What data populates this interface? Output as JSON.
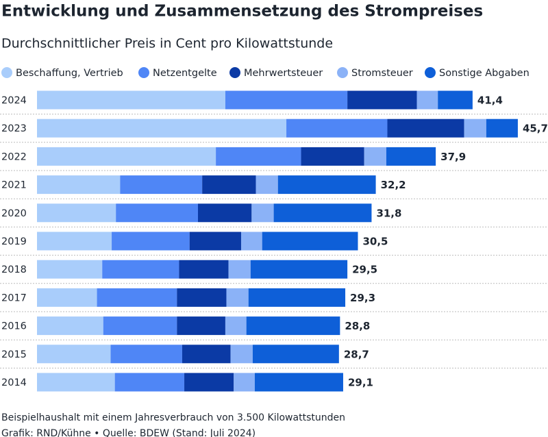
{
  "chart_data": {
    "type": "stacked-barh",
    "title": "Entwicklung und Zusammensetzung des Strompreises",
    "subtitle": "Durchschnittlicher Preis in Cent pro Kilowattstunde",
    "categories": [
      "2024",
      "2023",
      "2022",
      "2021",
      "2020",
      "2019",
      "2018",
      "2017",
      "2016",
      "2015",
      "2014"
    ],
    "series": [
      {
        "name": "Beschaffung, Vertrieb",
        "color": "#a9cdfb",
        "values": [
          17.9,
          23.7,
          17.0,
          7.9,
          7.5,
          7.1,
          6.2,
          5.7,
          6.3,
          7.0,
          7.4
        ]
      },
      {
        "name": "Netzentgelte",
        "color": "#4f86f6",
        "values": [
          11.6,
          9.6,
          8.1,
          7.8,
          7.8,
          7.4,
          7.3,
          7.6,
          7.0,
          6.8,
          6.6
        ]
      },
      {
        "name": "Mehrwertsteuer",
        "color": "#0b3aa5",
        "values": [
          6.6,
          7.3,
          6.0,
          5.1,
          5.1,
          4.9,
          4.7,
          4.7,
          4.6,
          4.6,
          4.7
        ]
      },
      {
        "name": "Stromsteuer",
        "color": "#8bb2f7",
        "values": [
          2.0,
          2.1,
          2.1,
          2.1,
          2.1,
          2.0,
          2.1,
          2.1,
          2.0,
          2.1,
          2.0
        ]
      },
      {
        "name": "Sonstige Abgaben",
        "color": "#0e5fd8",
        "values": [
          3.3,
          3.0,
          4.7,
          9.3,
          9.3,
          9.1,
          9.2,
          9.2,
          8.9,
          8.2,
          8.4
        ]
      }
    ],
    "totals": [
      41.4,
      45.7,
      37.9,
      32.2,
      31.8,
      30.5,
      29.5,
      29.3,
      28.8,
      28.7,
      29.1
    ],
    "total_labels": [
      "41,4",
      "45,7",
      "37,9",
      "32,2",
      "31,8",
      "30,5",
      "29,5",
      "29,3",
      "28,8",
      "28,7",
      "29,1"
    ],
    "notes": [
      "Beispielhaushalt mit einem Jahresverbrauch von 3.500 Kilowattstunden",
      "Grafik: RND/Kühne • Quelle: BDEW (Stand: Juli 2024)"
    ]
  }
}
